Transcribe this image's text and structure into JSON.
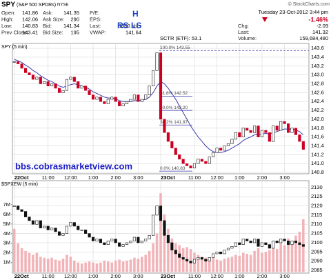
{
  "header": {
    "symbol": "SPY",
    "name": "(S&P 500 SPDRs)",
    "exchange": "NYSE",
    "source": "© StockCharts.com",
    "quote_columns": [
      [
        {
          "label": "Open:",
          "value": 141.86
        },
        {
          "label": "High:",
          "value": 142.06
        },
        {
          "label": "Low:",
          "value": 140.83
        },
        {
          "label": "Prev Close:",
          "value": 143.41
        }
      ],
      [
        {
          "label": "Ask:",
          "value": 141.35
        },
        {
          "label": "Ask Size:",
          "value": 290
        },
        {
          "label": "Bid:",
          "value": 141.34
        },
        {
          "label": "Bid Size:",
          "value": 195
        }
      ],
      [
        {
          "label": "P/E:"
        },
        {
          "label": "EPS:"
        },
        {
          "label": "Last:",
          "value": "1900 shrs"
        },
        {
          "label": "VWAP:",
          "value": 141.64
        }
      ]
    ],
    "sctr": "SCTR (ETF): 53.1",
    "annotations": [
      "H",
      "RS LS"
    ],
    "datetime": "Tuesday 23-Oct-2012 3:44 pm",
    "change_pct": "-1.46%",
    "right_quote": [
      {
        "label": "Chg:",
        "value": -2.09
      },
      {
        "label": "Last:",
        "value": 141.32
      },
      {
        "label": "Volume:",
        "value": "159,684,480"
      }
    ]
  },
  "chart_data": [
    {
      "type": "candlestick",
      "title": "SPY (5 min)",
      "x": [
        0,
        1,
        2,
        3,
        4,
        5,
        6,
        7,
        8,
        9,
        10,
        11,
        12,
        13,
        14,
        15,
        16,
        17,
        18,
        19,
        20,
        21,
        22,
        23,
        24,
        25,
        26,
        27,
        28,
        29,
        30,
        31,
        32,
        33,
        34,
        35,
        36,
        37,
        38,
        39,
        40,
        41,
        42,
        43,
        44,
        45,
        46,
        47,
        48,
        49,
        50,
        51,
        52,
        53,
        54,
        55,
        56,
        57,
        58,
        59,
        60,
        61,
        62,
        63,
        64,
        65,
        66,
        67,
        68,
        69,
        70,
        71,
        72,
        73,
        74,
        75,
        76,
        77
      ],
      "values": [
        143.3,
        143.25,
        143.15,
        143.05,
        143.0,
        142.9,
        142.95,
        142.8,
        142.85,
        142.75,
        142.8,
        142.7,
        142.6,
        142.65,
        142.9,
        142.95,
        142.85,
        142.7,
        142.75,
        142.65,
        142.55,
        142.45,
        142.5,
        142.4,
        142.35,
        142.45,
        142.5,
        142.4,
        142.3,
        142.35,
        142.4,
        142.45,
        142.55,
        142.4,
        142.45,
        142.55,
        142.75,
        143.1,
        143.5,
        142.0,
        141.7,
        141.5,
        141.35,
        141.2,
        141.1,
        141.0,
        140.95,
        140.9,
        141.0,
        141.1,
        141.05,
        141.0,
        141.15,
        141.25,
        141.35,
        141.3,
        141.4,
        141.45,
        141.55,
        141.7,
        141.6,
        141.8,
        141.75,
        141.7,
        141.85,
        141.6,
        141.75,
        141.7,
        141.5,
        141.85,
        141.75,
        141.95,
        141.9,
        141.7,
        141.8,
        141.65,
        141.5,
        141.32
      ],
      "ma_values": [
        143.35,
        143.32,
        143.28,
        143.22,
        143.17,
        143.1,
        143.05,
        142.98,
        142.93,
        142.88,
        142.85,
        142.8,
        142.75,
        142.72,
        142.75,
        142.78,
        142.8,
        142.78,
        142.75,
        142.72,
        142.68,
        142.62,
        142.58,
        142.54,
        142.5,
        142.48,
        142.48,
        142.46,
        142.42,
        142.4,
        142.4,
        142.4,
        142.42,
        142.42,
        142.43,
        142.45,
        142.5,
        142.6,
        142.75,
        142.85,
        142.8,
        142.7,
        142.58,
        142.45,
        142.3,
        142.15,
        142.0,
        141.85,
        141.72,
        141.6,
        141.5,
        141.4,
        141.32,
        141.27,
        141.25,
        141.25,
        141.27,
        141.3,
        141.35,
        141.4,
        141.45,
        141.52,
        141.57,
        141.6,
        141.65,
        141.65,
        141.67,
        141.68,
        141.67,
        141.7,
        141.72,
        141.76,
        141.78,
        141.78,
        141.78,
        141.76,
        141.72,
        141.65
      ],
      "up_color": "#111111",
      "down_color": "#cc0022",
      "ma_color": "#3a3aa8",
      "xlim": [
        -0.5,
        78.5
      ],
      "xticks": [
        {
          "value": 0,
          "label": "22Oct"
        },
        {
          "value": 9,
          "label": "11:00"
        },
        {
          "value": 15,
          "label": "12:00"
        },
        {
          "value": 21,
          "label": "1:00"
        },
        {
          "value": 27,
          "label": "2:00"
        },
        {
          "value": 33,
          "label": "3:00"
        },
        {
          "value": 39,
          "label": "23Oct"
        },
        {
          "value": 48,
          "label": "11:00"
        },
        {
          "value": 54,
          "label": "12:00"
        },
        {
          "value": 60,
          "label": "1:00"
        },
        {
          "value": 66,
          "label": "2:00"
        },
        {
          "value": 72,
          "label": "3:00"
        }
      ],
      "ylim": [
        140.77,
        143.71
      ],
      "yticks": [
        140.8,
        {
          "value": 141,
          "label": "141.0"
        },
        141.2,
        141.4,
        141.6,
        141.8,
        {
          "value": 142,
          "label": "142.0"
        },
        142.2,
        142.4,
        142.6,
        142.8,
        {
          "value": 143,
          "label": "143.0"
        },
        143.2,
        143.4,
        143.6
      ],
      "grid": true,
      "annotations": [
        {
          "label": "100.0% 143.55",
          "value": 143.55
        },
        {
          "label": "61.8% 142.52",
          "value": 142.52
        },
        {
          "label": "50.0% 142.20",
          "value": 142.2
        },
        {
          "label": "38.2% 141.87",
          "value": 141.87
        },
        {
          "label": "0.0% 140.83",
          "value": 140.83
        }
      ],
      "annotation_color": "#3a3aa8",
      "watermark": "bbs.cobrasmarketview.com"
    },
    {
      "type": "candlestick",
      "title": "$SPXEW (5 min)",
      "x": [
        0,
        1,
        2,
        3,
        4,
        5,
        6,
        7,
        8,
        9,
        10,
        11,
        12,
        13,
        14,
        15,
        16,
        17,
        18,
        19,
        20,
        21,
        22,
        23,
        24,
        25,
        26,
        27,
        28,
        29,
        30,
        31,
        32,
        33,
        34,
        35,
        36,
        37,
        38,
        39,
        40,
        41,
        42,
        43,
        44,
        45,
        46,
        47,
        48,
        49,
        50,
        51,
        52,
        53,
        54,
        55,
        56,
        57,
        58,
        59,
        60,
        61,
        62,
        63,
        64,
        65,
        66,
        67,
        68,
        69,
        70,
        71,
        72,
        73,
        74,
        75,
        76,
        77
      ],
      "values": [
        2120,
        2118,
        2117,
        2114,
        2112,
        2110,
        2112,
        2108,
        2109,
        2107,
        2108,
        2106,
        2104,
        2105,
        2109,
        2111,
        2109,
        2107,
        2107,
        2105,
        2103,
        2101,
        2102,
        2100,
        2099,
        2101,
        2102,
        2100,
        2098,
        2099,
        2100,
        2101,
        2103,
        2100,
        2101,
        2102,
        2104,
        2115,
        2120,
        2112,
        2104,
        2100,
        2096,
        2094,
        2092,
        2091,
        2090,
        2089,
        2091,
        2092,
        2091,
        2090,
        2092,
        2094,
        2095,
        2094,
        2096,
        2097,
        2098,
        2100,
        2099,
        2102,
        2101,
        2100,
        2102,
        2098,
        2100,
        2099,
        2097,
        2101,
        2100,
        2102,
        2101,
        2099,
        2101,
        2100,
        2099,
        2098
      ],
      "up_color": "#111111",
      "down_color": "#111111",
      "xlim": [
        -0.5,
        78.5
      ],
      "xticks": [
        {
          "value": 0,
          "label": "22Oct"
        },
        {
          "value": 9,
          "label": "11:00"
        },
        {
          "value": 15,
          "label": "12:00"
        },
        {
          "value": 21,
          "label": "1:00"
        },
        {
          "value": 27,
          "label": "2:00"
        },
        {
          "value": 33,
          "label": "3:00"
        },
        {
          "value": 39,
          "label": "23Oct"
        },
        {
          "value": 48,
          "label": "11:00"
        },
        {
          "value": 54,
          "label": "12:00"
        },
        {
          "value": 60,
          "label": "1:00"
        },
        {
          "value": 66,
          "label": "2:00"
        },
        {
          "value": 72,
          "label": "3:00"
        }
      ],
      "ylim": [
        2083.5,
        2133.7
      ],
      "yticks": [
        2085,
        2090,
        2095,
        2100,
        2105,
        2110,
        2115,
        2120,
        2125,
        2130
      ],
      "grid": true,
      "volume": {
        "color": "#f2b3b8",
        "axis": "y2",
        "values": [
          4.5,
          3.0,
          2.5,
          2.2,
          2.0,
          1.8,
          2.0,
          1.6,
          1.5,
          1.4,
          1.5,
          1.3,
          1.2,
          1.4,
          1.8,
          1.6,
          1.2,
          1.0,
          0.9,
          1.0,
          1.1,
          1.0,
          0.9,
          1.0,
          1.2,
          1.1,
          1.0,
          1.2,
          1.3,
          1.1,
          1.2,
          1.3,
          1.5,
          1.4,
          1.6,
          1.8,
          2.2,
          3.0,
          4.0,
          8.2,
          6.0,
          4.5,
          3.5,
          3.0,
          2.8,
          2.5,
          2.6,
          2.4,
          2.0,
          1.8,
          1.6,
          1.5,
          1.4,
          1.5,
          1.3,
          1.2,
          1.4,
          1.5,
          1.6,
          1.8,
          1.7,
          2.0,
          1.9,
          1.8,
          2.2,
          2.5,
          2.0,
          2.1,
          2.3,
          2.5,
          2.4,
          3.0,
          2.8,
          3.5,
          3.2,
          3.8,
          4.2,
          5.5
        ]
      },
      "y2lim": [
        -0.1,
        9.5
      ],
      "y2ticks": [
        {
          "value": 1,
          "label": "1M"
        },
        {
          "value": 2,
          "label": "2M"
        },
        {
          "value": 3,
          "label": "3M"
        },
        {
          "value": 4,
          "label": "4M"
        },
        {
          "value": 5,
          "label": "5M"
        },
        {
          "value": 6,
          "label": "6M"
        },
        {
          "value": 7,
          "label": "7M"
        }
      ]
    }
  ]
}
